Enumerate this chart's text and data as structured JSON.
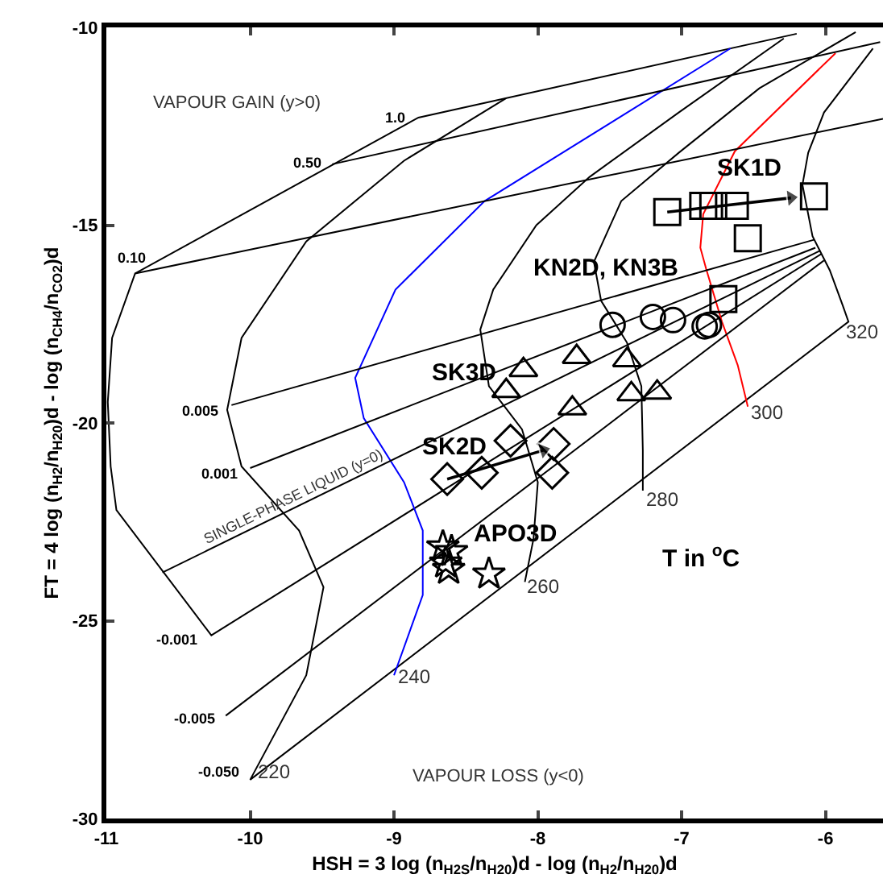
{
  "chart_data": {
    "type": "scatter",
    "xlabel": "HSH = 3 log (n$_{H2S}$/n$_{H20}$)d - log (n$_{H2}$/n$_{H20}$)d",
    "ylabel": "FT = 4 log (n$_{H2}$/n$_{H20}$)d - log (n$_{CH4}$/n$_{CO2}$)d",
    "xlim": [
      -11,
      -5.6
    ],
    "xticks": [
      -11,
      -10,
      -9,
      -8,
      -7,
      -6
    ],
    "ylim": [
      -30,
      -10
    ],
    "yticks": [
      -30,
      -25,
      -20,
      -15,
      -10
    ],
    "grid": false,
    "series": [
      {
        "type": "line",
        "color": "#000000",
        "x": [
          -6.2,
          -8.83,
          -10.8,
          -10.96,
          -10.99,
          -10.97,
          -10.93,
          -10.27,
          -6.03
        ],
        "values": [
          -10.16,
          -12.28,
          -16.22,
          -17.85,
          -19.47,
          -21.1,
          -22.2,
          -25.37,
          -15.73
        ]
      },
      {
        "type": "line",
        "color": "#000000",
        "x": [
          -8.22,
          -8.93,
          -9.61,
          -10.06,
          -10.16,
          -10.06,
          -9.66,
          -9.49,
          -9.61,
          -10.0,
          -5.84,
          -5.88,
          -5.97,
          -6.09,
          -6.16,
          -6.12,
          -6.01,
          -5.67
        ],
        "values": [
          -11.79,
          -13.37,
          -15.41,
          -17.85,
          -19.67,
          -21.1,
          -22.72,
          -24.15,
          -26.38,
          -29.02,
          -17.44,
          -17.03,
          -16.14,
          -15.28,
          -13.98,
          -13.17,
          -12.15,
          -10.53
        ]
      },
      {
        "type": "line",
        "color": "#0000ff",
        "x": [
          -6.66,
          -7.47,
          -8.37,
          -8.99,
          -9.27,
          -9.21,
          -8.93,
          -8.8,
          -8.8,
          -9.0
        ],
        "values": [
          -10.53,
          -12.36,
          -14.39,
          -16.63,
          -18.86,
          -19.88,
          -21.5,
          -22.72,
          -24.35,
          -26.38
        ]
      },
      {
        "type": "line",
        "color": "#000000",
        "x": [
          -6.29,
          -7.02,
          -7.64,
          -8.01,
          -8.31,
          -8.4,
          -8.34,
          -8.11,
          -8.0,
          -8.03,
          -8.09
        ],
        "values": [
          -10.28,
          -12.15,
          -13.78,
          -15.0,
          -16.63,
          -17.64,
          -19.07,
          -20.16,
          -21.5,
          -22.93,
          -24.02
        ]
      },
      {
        "type": "line",
        "color": "#000000",
        "x": [
          -5.79,
          -6.46,
          -7.02,
          -7.42,
          -7.61,
          -7.56,
          -7.38,
          -7.28,
          -7.27,
          -7.27
        ],
        "values": [
          -10.12,
          -11.54,
          -13.17,
          -14.39,
          -15.93,
          -16.91,
          -17.97,
          -19.07,
          -20.69,
          -21.71
        ]
      },
      {
        "type": "line",
        "color": "#ff0000",
        "x": [
          -5.93,
          -6.63,
          -6.85,
          -6.87,
          -6.83,
          -6.72,
          -6.61,
          -6.54
        ],
        "values": [
          -10.65,
          -13.13,
          -14.72,
          -15.57,
          -16.1,
          -17.44,
          -18.54,
          -19.59
        ]
      },
      {
        "type": "line",
        "color": "#000000",
        "x": [
          -9.43,
          -5.62
        ],
        "values": [
          -13.46,
          -10.37
        ]
      },
      {
        "type": "line",
        "color": "#000000",
        "x": [
          -10.8,
          -5.6
        ],
        "values": [
          -16.22,
          -12.31
        ]
      },
      {
        "type": "line",
        "color": "#000000",
        "x": [
          -10.13,
          -6.08
        ],
        "values": [
          -19.55,
          -15.37
        ]
      },
      {
        "type": "line",
        "color": "#000000",
        "x": [
          -10.0,
          -6.07
        ],
        "values": [
          -21.14,
          -15.57
        ]
      },
      {
        "type": "line",
        "color": "#000000",
        "name": "SINGLE-PHASE LIQUID (y=0)",
        "x": [
          -10.61,
          -6.04
        ],
        "values": [
          -23.78,
          -15.65
        ]
      },
      {
        "type": "line",
        "color": "#000000",
        "x": [
          -10.17,
          -6.01
        ],
        "values": [
          -27.4,
          -15.89
        ]
      },
      {
        "type": "scatter",
        "marker": "square",
        "color": "#000000",
        "x": [
          -7.1,
          -6.85,
          -6.78,
          -6.63,
          -6.08,
          -6.54,
          -6.71
        ],
        "values": [
          -14.67,
          -14.51,
          -14.51,
          -14.51,
          -14.27,
          -15.33,
          -16.87
        ]
      },
      {
        "type": "scatter",
        "marker": "circle",
        "color": "#000000",
        "x": [
          -7.48,
          -7.2,
          -7.06,
          -6.84,
          -6.81
        ],
        "values": [
          -17.52,
          -17.32,
          -17.4,
          -17.56,
          -17.52
        ]
      },
      {
        "type": "scatter",
        "marker": "triangle",
        "color": "#000000",
        "x": [
          -8.1,
          -8.22,
          -7.73,
          -7.38,
          -7.35,
          -7.17,
          -7.76
        ],
        "values": [
          -18.66,
          -19.19,
          -18.33,
          -18.41,
          -19.27,
          -19.23,
          -19.63
        ]
      },
      {
        "type": "scatter",
        "marker": "diamond",
        "color": "#000000",
        "x": [
          -8.63,
          -8.39,
          -8.19,
          -7.89,
          -7.9
        ],
        "values": [
          -21.42,
          -21.26,
          -20.45,
          -20.53,
          -21.26
        ]
      },
      {
        "type": "scatter",
        "marker": "star",
        "color": "#000000",
        "x": [
          -8.66,
          -8.6,
          -8.64,
          -8.62,
          -8.34
        ],
        "values": [
          -23.13,
          -23.25,
          -23.54,
          -23.7,
          -23.82
        ]
      },
      {
        "type": "line",
        "marker": "triangle",
        "color": "#000000",
        "x": [
          -7.1,
          -6.24
        ],
        "values": [
          -14.67,
          -14.31
        ]
      },
      {
        "type": "line",
        "marker": "triangle",
        "color": "#000000",
        "x": [
          -8.63,
          -7.96
        ],
        "values": [
          -21.42,
          -20.69
        ]
      }
    ],
    "annotations": [
      "VAPOUR GAIN (y>0)",
      "VAPOUR LOSS (y<0)",
      "T in $^{o}$C",
      "SK1D",
      "KN2D, KN3B",
      "SK3D",
      "SK2D",
      "APO3D",
      "1.0",
      "0.50",
      "0.10",
      "0.005",
      "0.001",
      "-0.001",
      "-0.005",
      "-0.050",
      "220",
      "240",
      "260",
      "280",
      "300",
      "320"
    ]
  }
}
